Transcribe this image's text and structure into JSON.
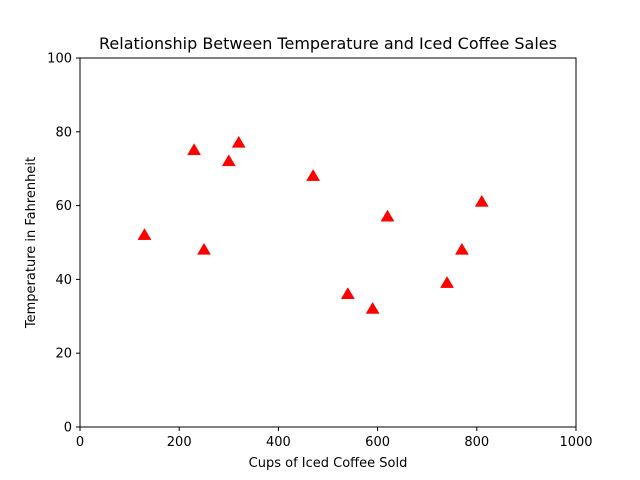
{
  "chart_data": {
    "type": "scatter",
    "title": "Relationship Between Temperature and Iced Coffee Sales",
    "xlabel": "Cups of Iced Coffee Sold",
    "ylabel": "Temperature in Fahrenheit",
    "xlim": [
      0,
      1000
    ],
    "ylim": [
      0,
      100
    ],
    "xticks": [
      0,
      200,
      400,
      600,
      800,
      1000
    ],
    "yticks": [
      0,
      20,
      40,
      60,
      80,
      100
    ],
    "marker": "triangle-up",
    "color": "#ff0000",
    "grid": false,
    "points": [
      {
        "x": 130,
        "y": 52
      },
      {
        "x": 230,
        "y": 75
      },
      {
        "x": 250,
        "y": 48
      },
      {
        "x": 300,
        "y": 72
      },
      {
        "x": 320,
        "y": 77
      },
      {
        "x": 470,
        "y": 68
      },
      {
        "x": 540,
        "y": 36
      },
      {
        "x": 590,
        "y": 32
      },
      {
        "x": 620,
        "y": 57
      },
      {
        "x": 740,
        "y": 39
      },
      {
        "x": 770,
        "y": 48
      },
      {
        "x": 810,
        "y": 61
      }
    ]
  }
}
